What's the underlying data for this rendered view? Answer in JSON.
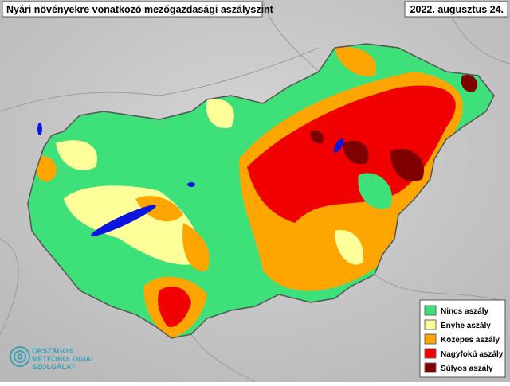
{
  "header": {
    "title": "Nyári növényekre vonatkozó mezőgazdasági aszályszint",
    "date": "2022. augusztus 24."
  },
  "legend": {
    "items": [
      {
        "label": "Nincs aszály",
        "color": "#3ee07a"
      },
      {
        "label": "Enyhe aszály",
        "color": "#ffff99"
      },
      {
        "label": "Közepes aszály",
        "color": "#ffa500"
      },
      {
        "label": "Nagyfokú aszály",
        "color": "#f00000"
      },
      {
        "label": "Súlyos aszály",
        "color": "#800000"
      }
    ]
  },
  "logo": {
    "lines": [
      "ORSZÁGOS",
      "METEOROLÓGIAI",
      "SZOLGÁLAT"
    ]
  }
}
